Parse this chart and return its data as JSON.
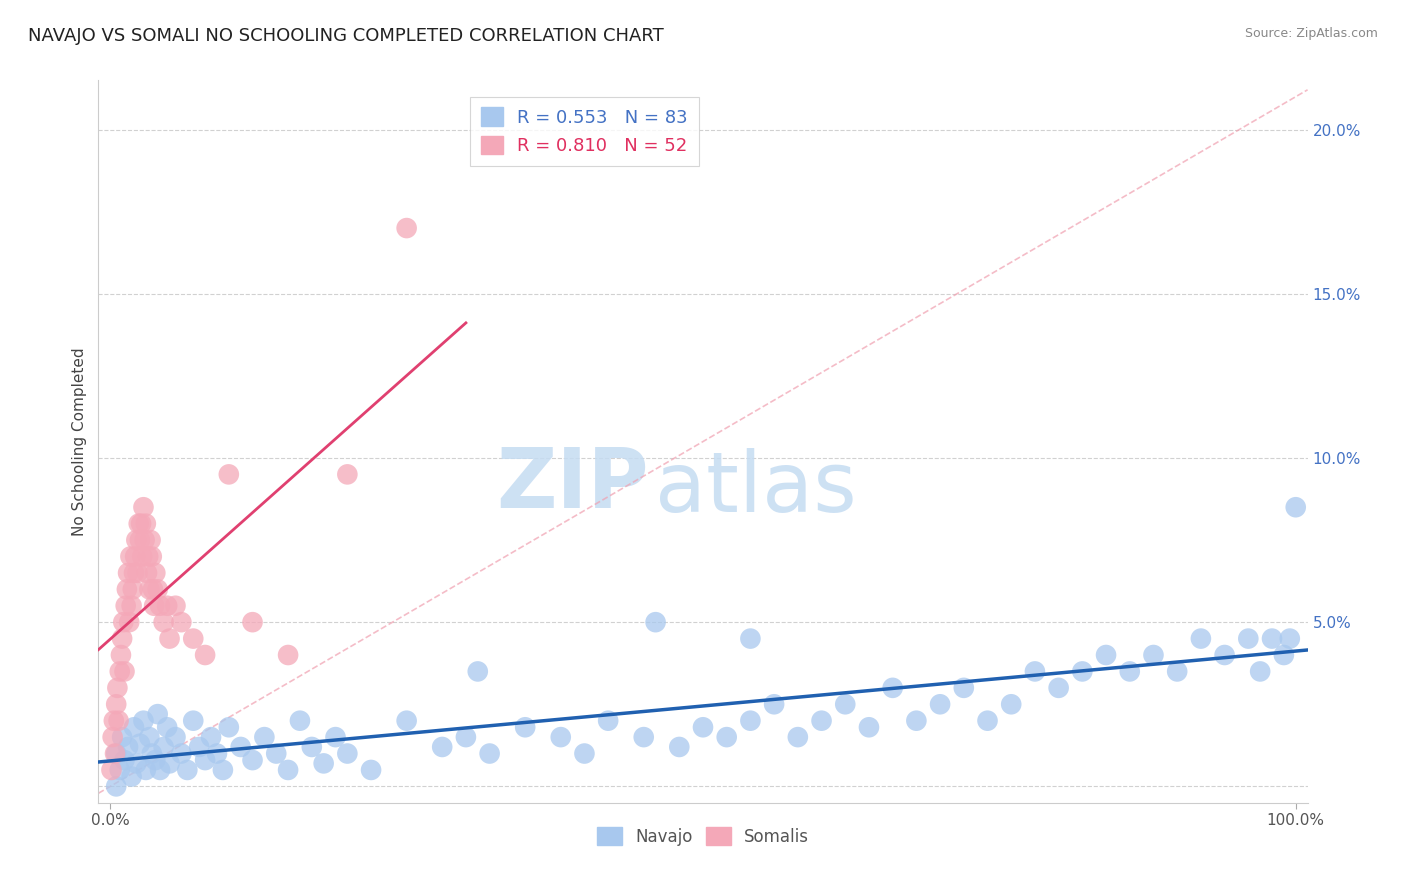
{
  "title": "NAVAJO VS SOMALI NO SCHOOLING COMPLETED CORRELATION CHART",
  "source": "Source: ZipAtlas.com",
  "ylabel": "No Schooling Completed",
  "navajo_color": "#A8C8EE",
  "somali_color": "#F4A8B8",
  "navajo_line_color": "#2060B0",
  "somali_line_color": "#E04070",
  "navajo_R": 0.553,
  "navajo_N": 83,
  "somali_R": 0.81,
  "somali_N": 52,
  "legend_label_navajo": "Navajo",
  "legend_label_somali": "Somalis",
  "watermark_zip": "ZIP",
  "watermark_atlas": "atlas",
  "diag_color": "#F0A0B0",
  "xlim": [
    -0.01,
    1.01
  ],
  "ylim": [
    -0.005,
    0.215
  ],
  "yticks": [
    0.0,
    0.05,
    0.1,
    0.15,
    0.2
  ],
  "ytick_labels": [
    "",
    "5.0%",
    "10.0%",
    "15.0%",
    "20.0%"
  ],
  "xtick_labels_left": "0.0%",
  "xtick_labels_right": "100.0%",
  "navajo_x": [
    0.005,
    0.008,
    0.01,
    0.012,
    0.015,
    0.018,
    0.02,
    0.022,
    0.025,
    0.028,
    0.03,
    0.033,
    0.035,
    0.038,
    0.04,
    0.042,
    0.045,
    0.048,
    0.05,
    0.055,
    0.06,
    0.065,
    0.07,
    0.075,
    0.08,
    0.085,
    0.09,
    0.095,
    0.1,
    0.11,
    0.12,
    0.13,
    0.14,
    0.15,
    0.16,
    0.17,
    0.18,
    0.19,
    0.2,
    0.22,
    0.25,
    0.28,
    0.3,
    0.32,
    0.35,
    0.38,
    0.4,
    0.42,
    0.45,
    0.48,
    0.5,
    0.52,
    0.54,
    0.56,
    0.58,
    0.6,
    0.62,
    0.64,
    0.66,
    0.68,
    0.7,
    0.72,
    0.74,
    0.76,
    0.78,
    0.8,
    0.82,
    0.84,
    0.86,
    0.88,
    0.9,
    0.92,
    0.94,
    0.96,
    0.97,
    0.98,
    0.99,
    0.995,
    1.0,
    0.54,
    0.46,
    0.31,
    0.005
  ],
  "navajo_y": [
    0.01,
    0.005,
    0.015,
    0.008,
    0.012,
    0.003,
    0.018,
    0.007,
    0.013,
    0.02,
    0.005,
    0.015,
    0.01,
    0.008,
    0.022,
    0.005,
    0.012,
    0.018,
    0.007,
    0.015,
    0.01,
    0.005,
    0.02,
    0.012,
    0.008,
    0.015,
    0.01,
    0.005,
    0.018,
    0.012,
    0.008,
    0.015,
    0.01,
    0.005,
    0.02,
    0.012,
    0.007,
    0.015,
    0.01,
    0.005,
    0.02,
    0.012,
    0.015,
    0.01,
    0.018,
    0.015,
    0.01,
    0.02,
    0.015,
    0.012,
    0.018,
    0.015,
    0.02,
    0.025,
    0.015,
    0.02,
    0.025,
    0.018,
    0.03,
    0.02,
    0.025,
    0.03,
    0.02,
    0.025,
    0.035,
    0.03,
    0.035,
    0.04,
    0.035,
    0.04,
    0.035,
    0.045,
    0.04,
    0.045,
    0.035,
    0.045,
    0.04,
    0.045,
    0.085,
    0.045,
    0.05,
    0.035,
    0.0
  ],
  "somali_x": [
    0.001,
    0.002,
    0.003,
    0.004,
    0.005,
    0.006,
    0.007,
    0.008,
    0.009,
    0.01,
    0.011,
    0.012,
    0.013,
    0.014,
    0.015,
    0.016,
    0.017,
    0.018,
    0.019,
    0.02,
    0.021,
    0.022,
    0.023,
    0.024,
    0.025,
    0.026,
    0.027,
    0.028,
    0.029,
    0.03,
    0.031,
    0.032,
    0.033,
    0.034,
    0.035,
    0.036,
    0.037,
    0.038,
    0.04,
    0.042,
    0.045,
    0.048,
    0.05,
    0.055,
    0.06,
    0.07,
    0.08,
    0.1,
    0.12,
    0.15,
    0.2,
    0.25
  ],
  "somali_y": [
    0.005,
    0.015,
    0.02,
    0.01,
    0.025,
    0.03,
    0.02,
    0.035,
    0.04,
    0.045,
    0.05,
    0.035,
    0.055,
    0.06,
    0.065,
    0.05,
    0.07,
    0.055,
    0.06,
    0.065,
    0.07,
    0.075,
    0.065,
    0.08,
    0.075,
    0.08,
    0.07,
    0.085,
    0.075,
    0.08,
    0.065,
    0.07,
    0.06,
    0.075,
    0.07,
    0.06,
    0.055,
    0.065,
    0.06,
    0.055,
    0.05,
    0.055,
    0.045,
    0.055,
    0.05,
    0.045,
    0.04,
    0.095,
    0.05,
    0.04,
    0.095,
    0.17
  ]
}
